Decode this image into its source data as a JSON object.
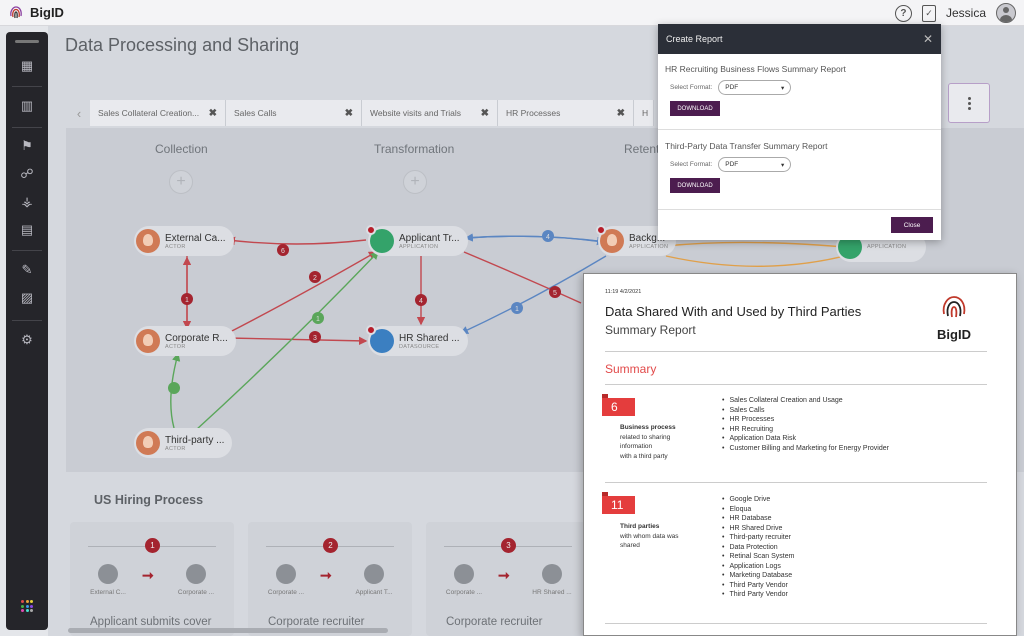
{
  "app": {
    "brand": "BigID",
    "user_name": "Jessica",
    "help_icon": "help-circle-icon",
    "tasks_icon": "clipboard-check-icon"
  },
  "sidebar": {
    "items": [
      {
        "icon": "dashboard-icon",
        "glyph": "▦"
      },
      {
        "icon": "analytics-icon",
        "glyph": "▥"
      },
      {
        "icon": "flag-icon",
        "glyph": "⚑"
      },
      {
        "icon": "organization-icon",
        "glyph": "☍"
      },
      {
        "icon": "hierarchy-icon",
        "glyph": "⚶"
      },
      {
        "icon": "inventory-icon",
        "glyph": "▤"
      },
      {
        "icon": "remediation-icon",
        "glyph": "✎"
      },
      {
        "icon": "reports-icon",
        "glyph": "▨"
      },
      {
        "icon": "settings-icon",
        "glyph": "⚙"
      }
    ]
  },
  "page": {
    "title": "Data Processing and Sharing"
  },
  "tabs": [
    {
      "label": "Sales Collateral Creation..."
    },
    {
      "label": "Sales Calls"
    },
    {
      "label": "Website visits and Trials"
    },
    {
      "label": "HR Processes"
    },
    {
      "label": "H"
    }
  ],
  "flow": {
    "columns": [
      "Collection",
      "Transformation",
      "Retent"
    ],
    "nodes": [
      {
        "name": "External Ca...",
        "type": "ACTOR"
      },
      {
        "name": "Corporate R...",
        "type": "ACTOR"
      },
      {
        "name": "Third-party ...",
        "type": "ACTOR"
      },
      {
        "name": "Applicant Tr...",
        "type": "APPLICATION"
      },
      {
        "name": "HR Shared ...",
        "type": "DATASOURCE"
      },
      {
        "name": "Backg...",
        "type": "APPLICATION"
      },
      {
        "name": "",
        "type": "APPLICATION"
      }
    ],
    "edge_labels": [
      "6",
      "1",
      "2",
      "3",
      "4",
      "1",
      "4",
      "5",
      "1"
    ]
  },
  "hiring": {
    "title": "US Hiring Process",
    "steps": [
      {
        "num": "1",
        "from": "External C...",
        "to": "Corporate ...",
        "desc": "Applicant submits cover"
      },
      {
        "num": "2",
        "from": "Corporate ...",
        "to": "Applicant T...",
        "desc": "Corporate recruiter"
      },
      {
        "num": "3",
        "from": "Corporate ...",
        "to": "HR Shared ...",
        "desc": "Corporate recruiter"
      }
    ]
  },
  "modal": {
    "title": "Create Report",
    "reports": [
      {
        "title": "HR Recruiting Business Flows Summary Report",
        "format_label": "Select Format:",
        "format": "PDF",
        "download_label": "DOWNLOAD"
      },
      {
        "title": "Third-Party Data Transfer Summary Report",
        "format_label": "Select Format:",
        "format": "PDF",
        "download_label": "DOWNLOAD"
      }
    ],
    "close_label": "Close"
  },
  "report_doc": {
    "timestamp": "11:19 4/2/2021",
    "title": "Data Shared With and Used by Third Parties",
    "subtitle": "Summary Report",
    "logo_text": "BigID",
    "section": "Summary",
    "metrics": [
      {
        "count": "6",
        "label_bold": "Business process",
        "label_rest": [
          "related to sharing",
          "information",
          "with a third party"
        ],
        "items": [
          "Sales Collateral Creation and Usage",
          "Sales Calls",
          "HR Processes",
          "HR Recruiting",
          "Application Data Risk",
          "Customer Billing and Marketing for Energy Provider"
        ]
      },
      {
        "count": "11",
        "label_bold": "Third parties",
        "label_rest": [
          "with whom data was",
          "shared"
        ],
        "items": [
          "Google Drive",
          "Eloqua",
          "HR Database",
          "HR Shared Drive",
          "Third-party recruiter",
          "Data Protection",
          "Retinal Scan System",
          "Application Logs",
          "Marketing Database",
          "Third Party Vendor",
          "Third Party Vendor"
        ]
      }
    ]
  }
}
